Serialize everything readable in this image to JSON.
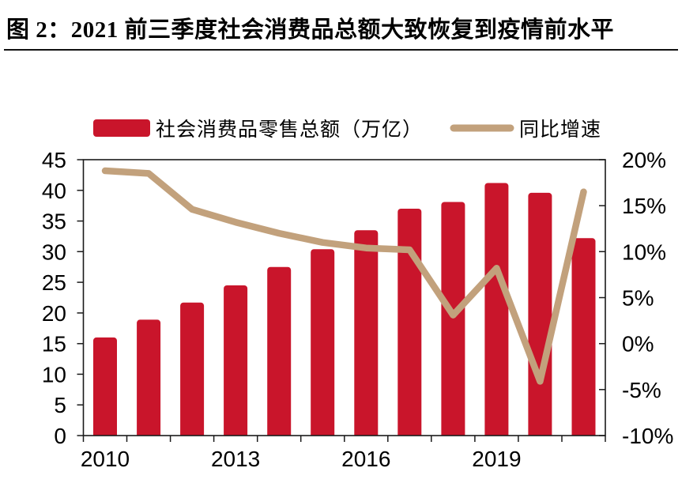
{
  "header": {
    "title": "图 2：2021 前三季度社会消费品总额大致恢复到疫情前水平"
  },
  "colors": {
    "bar": "#C9152B",
    "line": "#C2A17C",
    "axis": "#1A1A1A",
    "text": "#000000",
    "divider": "#111111",
    "background": "#FFFFFF"
  },
  "chart_data": {
    "type": "combo-bar-line",
    "title": "2021 前三季度社会消费品总额大致恢复到疫情前水平",
    "grid": false,
    "legend_position": "top",
    "categories": [
      "2010",
      "2011",
      "2012",
      "2013",
      "2014",
      "2015",
      "2016",
      "2017",
      "2018",
      "2019",
      "2020",
      "2021"
    ],
    "series": [
      {
        "name": "社会消费品零售总额（万亿）",
        "type": "bar",
        "axis": "left",
        "color": "#C9152B",
        "values": [
          16.0,
          18.9,
          21.7,
          24.5,
          27.5,
          30.4,
          33.5,
          37.0,
          38.1,
          41.2,
          39.6,
          32.2
        ]
      },
      {
        "name": "同比增速",
        "type": "line",
        "axis": "right",
        "color": "#C2A17C",
        "values": [
          18.8,
          18.5,
          14.6,
          13.2,
          12.0,
          11.0,
          10.4,
          10.2,
          3.1,
          8.2,
          -4.1,
          16.5
        ]
      }
    ],
    "x_axis": {
      "tick_labels": [
        {
          "label": "2010",
          "index": 0
        },
        {
          "label": "2013",
          "index": 3
        },
        {
          "label": "2016",
          "index": 6
        },
        {
          "label": "2019",
          "index": 9
        }
      ]
    },
    "left_axis": {
      "min": 0,
      "max": 45,
      "step": 5,
      "tick_labels": [
        "45",
        "40",
        "35",
        "30",
        "25",
        "20",
        "15",
        "10",
        "5",
        "0"
      ]
    },
    "right_axis": {
      "min": -10,
      "max": 20,
      "step": 5,
      "tick_labels": [
        "20%",
        "15%",
        "10%",
        "5%",
        "0%",
        "-5%",
        "-10%"
      ]
    },
    "legend": [
      {
        "label": "社会消费品零售总额（万亿）",
        "marker": "bar",
        "color": "#C9152B"
      },
      {
        "label": "同比增速",
        "marker": "line",
        "color": "#C2A17C"
      }
    ]
  }
}
